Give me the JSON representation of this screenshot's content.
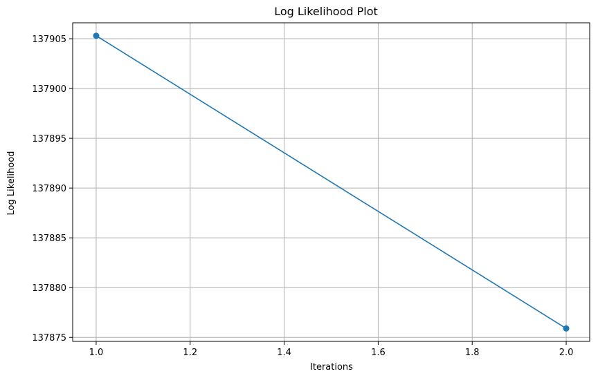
{
  "chart_data": {
    "type": "line",
    "title": "Log Likelihood Plot",
    "xlabel": "Iterations",
    "ylabel": "Log Likelihood",
    "xlim": [
      0.95,
      2.05
    ],
    "ylim": [
      137874.6,
      137906.6
    ],
    "xticks": [
      1.0,
      1.2,
      1.4,
      1.6,
      1.8,
      2.0
    ],
    "xtick_labels": [
      "1.0",
      "1.2",
      "1.4",
      "1.6",
      "1.8",
      "2.0"
    ],
    "yticks": [
      137875,
      137880,
      137885,
      137890,
      137895,
      137900,
      137905
    ],
    "ytick_labels": [
      "137875",
      "137880",
      "137885",
      "137890",
      "137895",
      "137900",
      "137905"
    ],
    "grid": true,
    "marker": "circle",
    "series": [
      {
        "color": "#1f77b4",
        "x": [
          1.0,
          2.0
        ],
        "y": [
          137905.3,
          137875.9
        ]
      }
    ]
  }
}
